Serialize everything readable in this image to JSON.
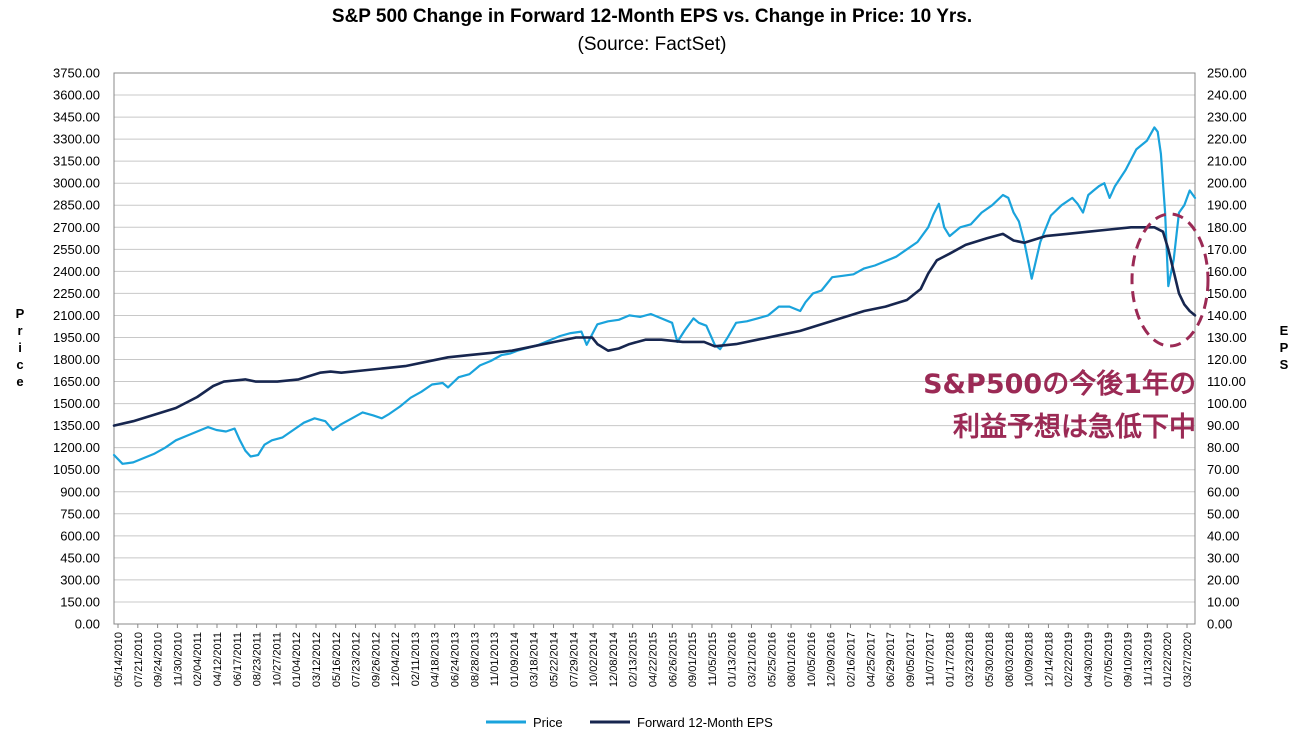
{
  "chart_data": {
    "type": "line",
    "title": "S&P 500 Change in Forward 12-Month EPS vs. Change in Price: 10 Yrs.",
    "subtitle": "(Source: FactSet)",
    "ylabel_left": "Price",
    "ylabel_right": "EPS",
    "ylim_left": [
      0,
      3750
    ],
    "ylim_right": [
      0,
      250
    ],
    "yticks_left": [
      "0.00",
      "150.00",
      "300.00",
      "450.00",
      "600.00",
      "750.00",
      "900.00",
      "1050.00",
      "1200.00",
      "1350.00",
      "1500.00",
      "1650.00",
      "1800.00",
      "1950.00",
      "2100.00",
      "2250.00",
      "2400.00",
      "2550.00",
      "2700.00",
      "2850.00",
      "3000.00",
      "3150.00",
      "3300.00",
      "3450.00",
      "3600.00",
      "3750.00"
    ],
    "yticks_right": [
      "0.00",
      "10.00",
      "20.00",
      "30.00",
      "40.00",
      "50.00",
      "60.00",
      "70.00",
      "80.00",
      "90.00",
      "100.00",
      "110.00",
      "120.00",
      "130.00",
      "140.00",
      "150.00",
      "160.00",
      "170.00",
      "180.00",
      "190.00",
      "200.00",
      "210.00",
      "220.00",
      "230.00",
      "240.00",
      "250.00"
    ],
    "x_ticks": [
      "05/14/2010",
      "07/21/2010",
      "09/24/2010",
      "11/30/2010",
      "02/04/2011",
      "04/12/2011",
      "06/17/2011",
      "08/23/2011",
      "10/27/2011",
      "01/04/2012",
      "03/12/2012",
      "05/16/2012",
      "07/23/2012",
      "09/26/2012",
      "12/04/2012",
      "02/11/2013",
      "04/18/2013",
      "06/24/2013",
      "08/28/2013",
      "11/01/2013",
      "01/09/2014",
      "03/18/2014",
      "05/22/2014",
      "07/29/2014",
      "10/02/2014",
      "12/08/2014",
      "02/13/2015",
      "04/22/2015",
      "06/26/2015",
      "09/01/2015",
      "11/05/2015",
      "01/13/2016",
      "03/21/2016",
      "05/25/2016",
      "08/01/2016",
      "10/05/2016",
      "12/09/2016",
      "02/16/2017",
      "04/25/2017",
      "06/29/2017",
      "09/05/2017",
      "11/07/2017",
      "01/17/2018",
      "03/23/2018",
      "05/30/2018",
      "08/03/2018",
      "10/09/2018",
      "12/14/2018",
      "02/22/2019",
      "04/30/2019",
      "07/05/2019",
      "09/10/2019",
      "11/13/2019",
      "01/22/2020",
      "03/27/2020"
    ],
    "series": [
      {
        "name": "Price",
        "axis": "left",
        "color": "#1aa3dc",
        "x": [
          2010.37,
          2010.45,
          2010.55,
          2010.65,
          2010.75,
          2010.85,
          2010.95,
          2011.05,
          2011.15,
          2011.25,
          2011.33,
          2011.42,
          2011.5,
          2011.55,
          2011.6,
          2011.65,
          2011.72,
          2011.78,
          2011.85,
          2011.95,
          2012.05,
          2012.15,
          2012.25,
          2012.35,
          2012.42,
          2012.5,
          2012.6,
          2012.7,
          2012.8,
          2012.88,
          2012.95,
          2013.05,
          2013.15,
          2013.25,
          2013.35,
          2013.45,
          2013.5,
          2013.6,
          2013.7,
          2013.8,
          2013.9,
          2014.0,
          2014.08,
          2014.15,
          2014.25,
          2014.35,
          2014.45,
          2014.55,
          2014.65,
          2014.75,
          2014.8,
          2014.9,
          2015.0,
          2015.1,
          2015.2,
          2015.3,
          2015.4,
          2015.5,
          2015.6,
          2015.65,
          2015.72,
          2015.8,
          2015.85,
          2015.92,
          2016.0,
          2016.05,
          2016.12,
          2016.2,
          2016.3,
          2016.4,
          2016.5,
          2016.6,
          2016.7,
          2016.8,
          2016.85,
          2016.92,
          2017.0,
          2017.1,
          2017.2,
          2017.3,
          2017.4,
          2017.5,
          2017.6,
          2017.7,
          2017.8,
          2017.9,
          2018.0,
          2018.05,
          2018.1,
          2018.15,
          2018.2,
          2018.3,
          2018.4,
          2018.5,
          2018.6,
          2018.7,
          2018.75,
          2018.8,
          2018.85,
          2018.9,
          2018.97,
          2019.05,
          2019.15,
          2019.25,
          2019.35,
          2019.4,
          2019.45,
          2019.5,
          2019.55,
          2019.6,
          2019.65,
          2019.7,
          2019.75,
          2019.85,
          2019.95,
          2020.05,
          2020.12,
          2020.15,
          2020.18,
          2020.2,
          2020.22,
          2020.25,
          2020.3,
          2020.35,
          2020.4,
          2020.45,
          2020.5
        ],
        "y": [
          1150,
          1090,
          1100,
          1130,
          1160,
          1200,
          1250,
          1280,
          1310,
          1340,
          1320,
          1310,
          1330,
          1250,
          1180,
          1140,
          1150,
          1220,
          1250,
          1270,
          1320,
          1370,
          1400,
          1380,
          1320,
          1360,
          1400,
          1440,
          1420,
          1400,
          1430,
          1480,
          1540,
          1580,
          1630,
          1640,
          1610,
          1680,
          1700,
          1760,
          1790,
          1830,
          1840,
          1860,
          1880,
          1900,
          1930,
          1960,
          1980,
          1990,
          1900,
          2040,
          2060,
          2070,
          2100,
          2090,
          2110,
          2080,
          2050,
          1920,
          2000,
          2080,
          2050,
          2030,
          1900,
          1870,
          1950,
          2050,
          2060,
          2080,
          2100,
          2160,
          2160,
          2130,
          2190,
          2250,
          2270,
          2360,
          2370,
          2380,
          2420,
          2440,
          2470,
          2500,
          2550,
          2600,
          2700,
          2790,
          2860,
          2700,
          2640,
          2700,
          2720,
          2800,
          2850,
          2920,
          2900,
          2800,
          2740,
          2600,
          2350,
          2600,
          2780,
          2850,
          2900,
          2860,
          2800,
          2920,
          2950,
          2980,
          3000,
          2900,
          2980,
          3090,
          3230,
          3290,
          3380,
          3350,
          3200,
          3000,
          2800,
          2300,
          2480,
          2800,
          2850,
          2950,
          2900
        ],
        "line_width": 2.2
      },
      {
        "name": "Forward 12-Month EPS",
        "axis": "right",
        "color": "#17264f",
        "x": [
          2010.37,
          2010.55,
          2010.75,
          2010.95,
          2011.15,
          2011.3,
          2011.4,
          2011.5,
          2011.6,
          2011.7,
          2011.9,
          2012.1,
          2012.3,
          2012.4,
          2012.5,
          2012.7,
          2012.9,
          2013.1,
          2013.3,
          2013.5,
          2013.7,
          2013.9,
          2014.1,
          2014.3,
          2014.5,
          2014.7,
          2014.85,
          2014.9,
          2015.0,
          2015.1,
          2015.2,
          2015.35,
          2015.5,
          2015.7,
          2015.9,
          2016.0,
          2016.2,
          2016.4,
          2016.6,
          2016.8,
          2017.0,
          2017.2,
          2017.4,
          2017.6,
          2017.8,
          2017.93,
          2018.0,
          2018.08,
          2018.12,
          2018.2,
          2018.35,
          2018.55,
          2018.7,
          2018.8,
          2018.9,
          2019.1,
          2019.3,
          2019.5,
          2019.7,
          2019.9,
          2020.05,
          2020.12,
          2020.2,
          2020.25,
          2020.3,
          2020.35,
          2020.4,
          2020.45,
          2020.5
        ],
        "y": [
          90,
          92,
          95,
          98,
          103,
          108,
          110,
          110.5,
          111,
          110,
          110,
          111,
          114,
          114.5,
          114,
          115,
          116,
          117,
          119,
          121,
          122,
          123,
          124,
          126,
          128,
          130,
          130,
          127,
          124,
          125,
          127,
          129,
          129,
          128,
          128,
          126,
          127,
          129,
          131,
          133,
          136,
          139,
          142,
          144,
          147,
          152,
          159,
          165,
          166,
          168,
          172,
          175,
          177,
          174,
          173,
          176,
          177,
          178,
          179,
          180,
          180,
          180,
          178,
          170,
          160,
          150,
          145,
          142,
          140
        ],
        "line_width": 2.6
      }
    ],
    "legend_position": "bottom-center",
    "grid": true,
    "annotation": {
      "lines": [
        "S&P500の今後1年の",
        "利益予想は急低下中"
      ],
      "color": "#9b2a55",
      "circle": "dashed ellipse around early-2020 decline"
    }
  }
}
